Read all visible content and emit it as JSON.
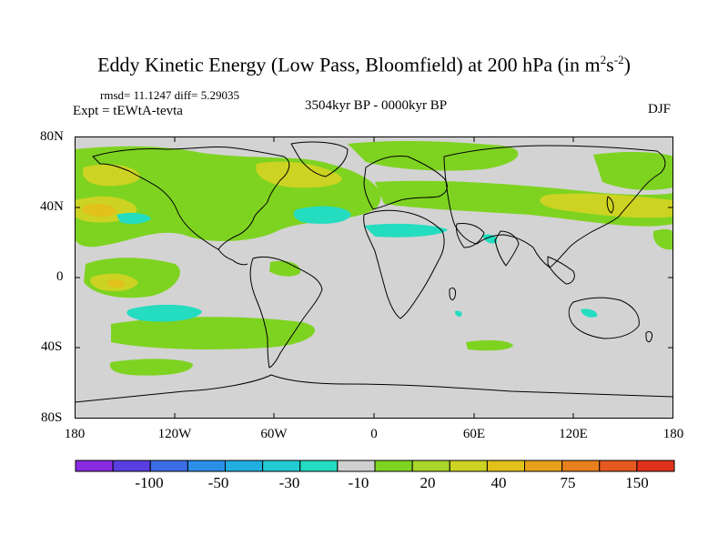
{
  "title": {
    "main": "Eddy Kinetic Energy (Low Pass, Bloomfield) at 200 hPa (in m",
    "sup1": "2",
    "mid": "s",
    "sup2": "-2",
    "end": ")"
  },
  "subtitle": {
    "rmsd": "rmsd= 11.1247 diff= 5.29035",
    "experiment": "Expt = tEWtA-tevta",
    "period": "3504kyr BP - 0000kyr BP",
    "season": "DJF"
  },
  "map": {
    "land_color": "#d3d3d3",
    "coastline_color": "#000000",
    "lat_ticks": [
      "80N",
      "40N",
      "0",
      "40S",
      "80S"
    ],
    "lon_ticks": [
      "180",
      "120W",
      "60W",
      "0",
      "60E",
      "120E",
      "180"
    ]
  },
  "colorbar": {
    "colors": [
      "#8a2be2",
      "#5a3fe0",
      "#3b6ee6",
      "#2b8fe8",
      "#22aee0",
      "#22cbd3",
      "#24dcc0",
      "#cfcfcf",
      "#7ed321",
      "#a9d62a",
      "#cdd322",
      "#e2c11a",
      "#e8a01a",
      "#e8801d",
      "#e5591f",
      "#e0321a"
    ],
    "labels": [
      "-100",
      "-50",
      "-30",
      "-10",
      "20",
      "40",
      "75",
      "150"
    ]
  },
  "legend": {
    "positive": "#7ed321",
    "strong_positive": "#cdd322",
    "negative": "#24dcc0",
    "neutral": "#d3d3d3"
  }
}
